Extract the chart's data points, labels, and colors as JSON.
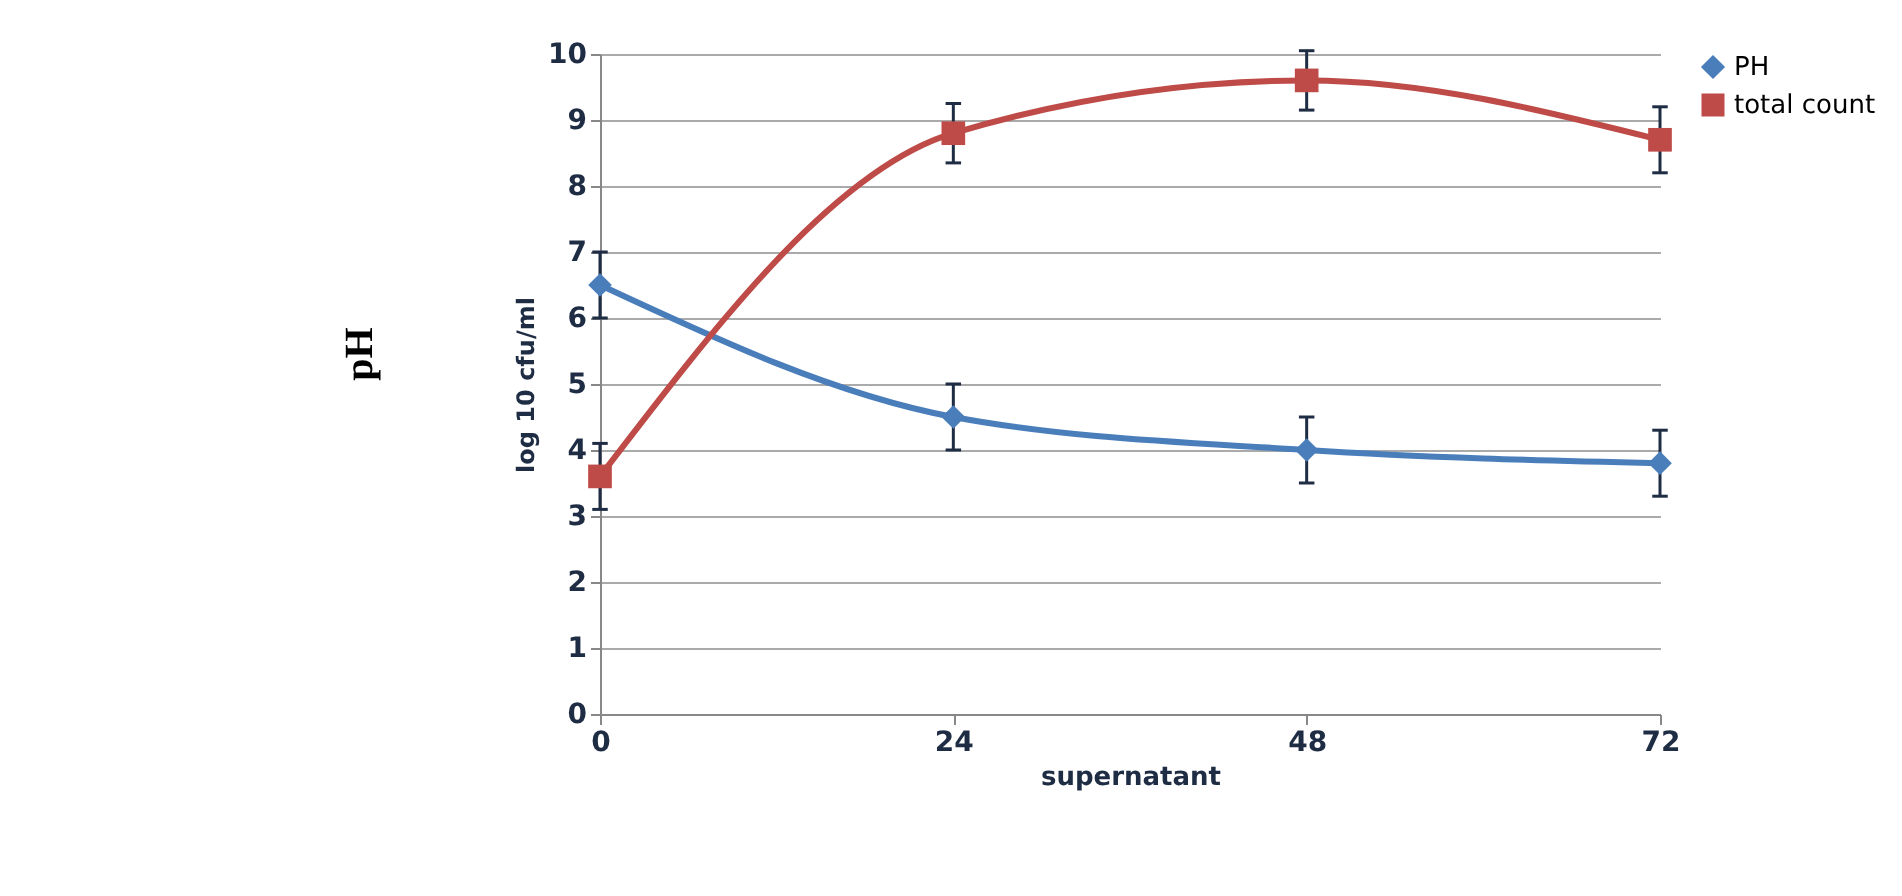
{
  "chart_data": {
    "type": "line",
    "xlabel": "supernatant",
    "ylabel": "log 10 cfu/ml",
    "annotations": [
      "pH"
    ],
    "x": [
      0,
      24,
      48,
      72
    ],
    "xlim": [
      0,
      72
    ],
    "xticks": [
      0,
      24,
      48,
      72
    ],
    "ylim": [
      0,
      10
    ],
    "yticks": [
      0,
      1,
      2,
      3,
      4,
      5,
      6,
      7,
      8,
      9,
      10
    ],
    "grid": "y",
    "legend": "right",
    "series": [
      {
        "name": "PH",
        "color": "#4a7ebb",
        "marker": "diamond",
        "values": [
          6.5,
          4.5,
          4.0,
          3.8
        ],
        "errors": [
          0.5,
          0.5,
          0.5,
          0.5
        ]
      },
      {
        "name": "total count",
        "color": "#be4b48",
        "marker": "square",
        "values": [
          3.6,
          8.8,
          9.6,
          8.7
        ],
        "errors": [
          0.5,
          0.45,
          0.45,
          0.5
        ]
      }
    ]
  }
}
